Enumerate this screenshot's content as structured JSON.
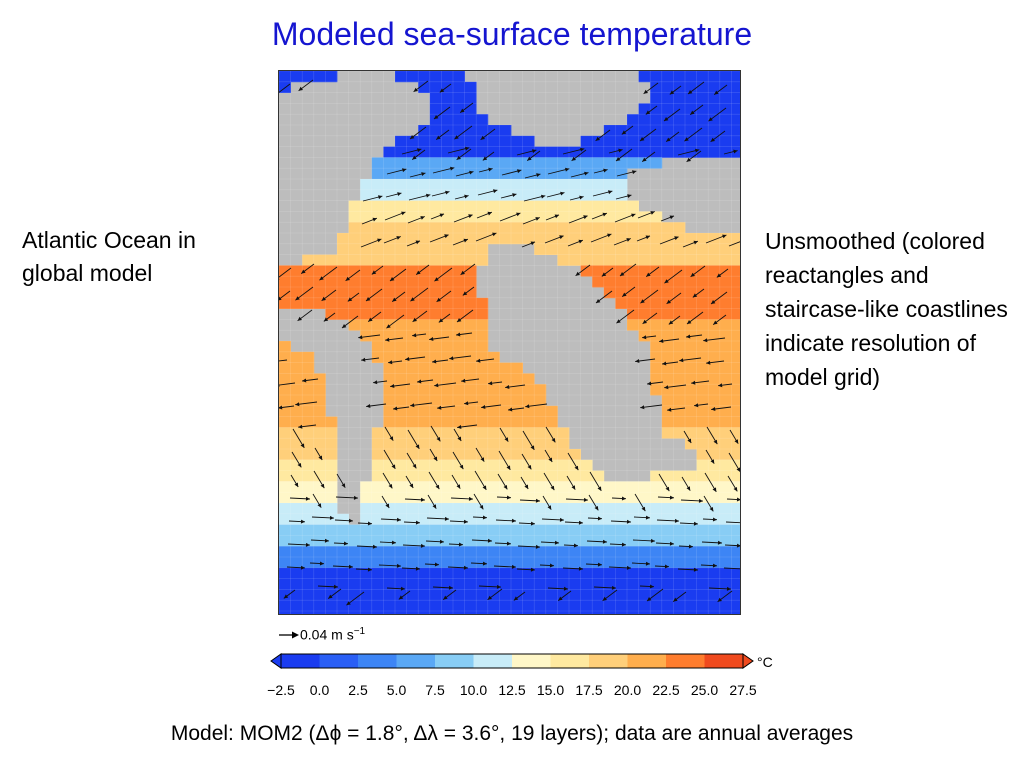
{
  "title": "Modeled sea-surface temperature",
  "left_note": "Atlantic Ocean in global model",
  "right_note": "Unsmoothed (colored reactangles and staircase-like coastlines indicate resolution of model grid)",
  "footer": "Model: MOM2 (Δϕ = 1.8°, Δλ = 3.6°, 19 layers); data are annual averages",
  "vector_scale": {
    "value": "0.04",
    "unit": "m s",
    "exponent": "−1"
  },
  "colors": {
    "title": "#1515d0",
    "land": "#bdbdbd",
    "arrow": "#111111"
  },
  "chart_data": {
    "type": "heatmap",
    "title": "Modeled sea-surface temperature",
    "variable": "sea-surface temperature (annual average) with surface current vectors",
    "colorbar": {
      "unit": "°C",
      "ticks": [
        "−2.5",
        "0.0",
        "2.5",
        "5.0",
        "7.5",
        "10.0",
        "12.5",
        "15.0",
        "17.5",
        "20.0",
        "22.5",
        "25.0",
        "27.5"
      ],
      "bounds": [
        -2.5,
        0.0,
        2.5,
        5.0,
        7.5,
        10.0,
        12.5,
        15.0,
        17.5,
        20.0,
        22.5,
        25.0,
        27.5
      ],
      "colors": [
        "#1a3cf0",
        "#2a5ff5",
        "#3d85f5",
        "#5aa8f5",
        "#88cdf5",
        "#c8ecf8",
        "#fff7c8",
        "#ffe9a0",
        "#ffcf7a",
        "#ffae4d",
        "#ff7d2e",
        "#f04a1e"
      ],
      "extend": "both"
    },
    "vector_scale": "0.04 m s−1"
  }
}
